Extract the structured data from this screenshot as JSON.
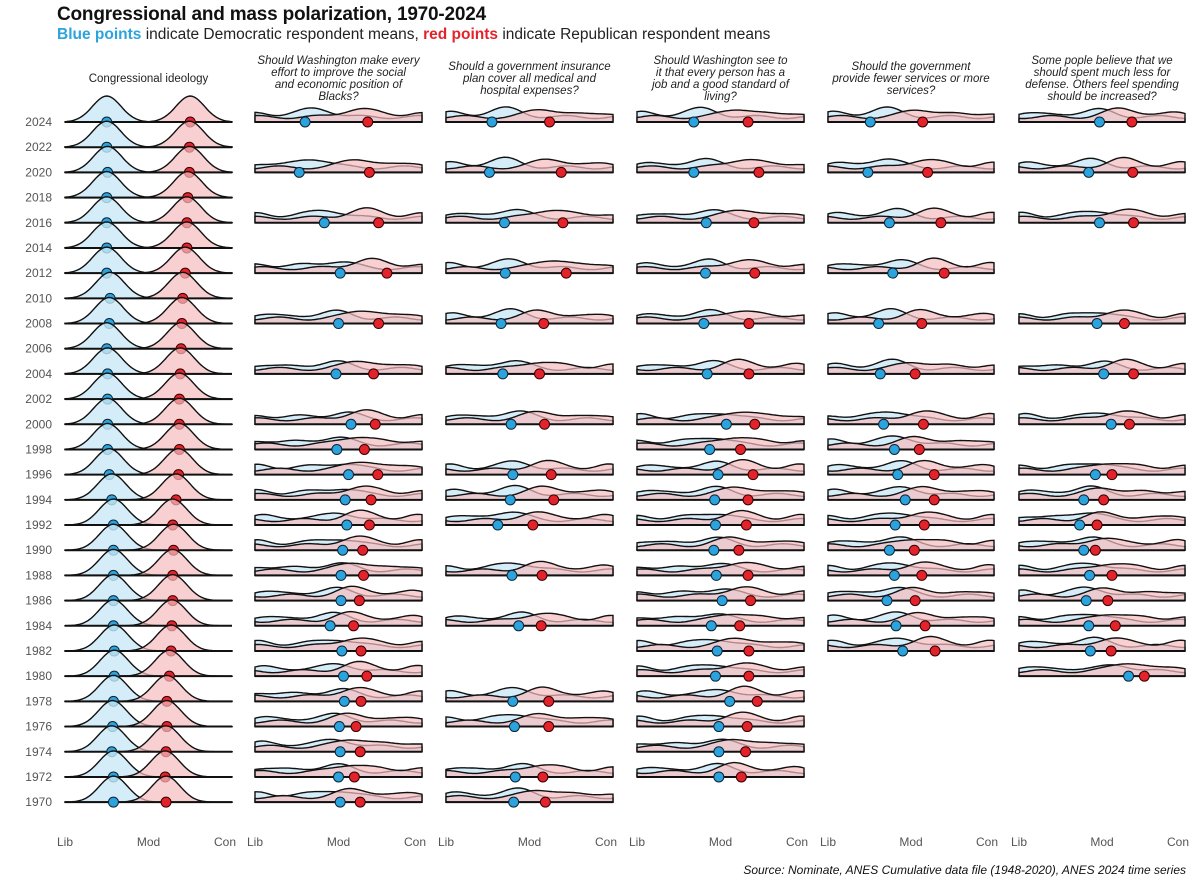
{
  "title": "Congressional and mass polarization, 1970-2024",
  "subtitle": {
    "blue_label": "Blue points",
    "blue_text": " indicate Democratic respondent means, ",
    "red_label": "red points",
    "red_text": " indicate Republican respondent means"
  },
  "source": "Source: Nominate, ANES Cumulative data file (1948-2020), ANES 2024 time series",
  "colors": {
    "dem_point": "#2ba3dc",
    "rep_point": "#e3232b",
    "dem_fill": "#c9e8f6",
    "rep_fill": "#f6bcbf",
    "outline": "#111111"
  },
  "chart_data": {
    "type": "ridgeline",
    "xlim": [
      -1,
      1
    ],
    "x_ticks": [
      {
        "value": -1,
        "label": "Lib"
      },
      {
        "value": 0,
        "label": "Mod"
      },
      {
        "value": 1,
        "label": "Con"
      }
    ],
    "years": [
      "2024",
      "2022",
      "2020",
      "2018",
      "2016",
      "2014",
      "2012",
      "2010",
      "2008",
      "2006",
      "2004",
      "2002",
      "2000",
      "1998",
      "1996",
      "1994",
      "1992",
      "1990",
      "1988",
      "1986",
      "1984",
      "1982",
      "1980",
      "1978",
      "1976",
      "1974",
      "1972",
      "1970"
    ],
    "panels": [
      {
        "title_lines": [
          "Congressional ideology"
        ],
        "italic": false,
        "kind": "congress",
        "points": [
          {
            "year": 2024,
            "dem": -0.5,
            "rep": 0.5
          },
          {
            "year": 2022,
            "dem": -0.5,
            "rep": 0.49
          },
          {
            "year": 2020,
            "dem": -0.49,
            "rep": 0.49
          },
          {
            "year": 2018,
            "dem": -0.5,
            "rep": 0.47
          },
          {
            "year": 2016,
            "dem": -0.5,
            "rep": 0.46
          },
          {
            "year": 2014,
            "dem": -0.5,
            "rep": 0.46
          },
          {
            "year": 2012,
            "dem": -0.5,
            "rep": 0.44
          },
          {
            "year": 2010,
            "dem": -0.46,
            "rep": 0.41
          },
          {
            "year": 2008,
            "dem": -0.47,
            "rep": 0.4
          },
          {
            "year": 2006,
            "dem": -0.5,
            "rep": 0.39
          },
          {
            "year": 2004,
            "dem": -0.49,
            "rep": 0.38
          },
          {
            "year": 2002,
            "dem": -0.49,
            "rep": 0.37
          },
          {
            "year": 2000,
            "dem": -0.49,
            "rep": 0.37
          },
          {
            "year": 1998,
            "dem": -0.49,
            "rep": 0.37
          },
          {
            "year": 1996,
            "dem": -0.47,
            "rep": 0.36
          },
          {
            "year": 1994,
            "dem": -0.44,
            "rep": 0.33
          },
          {
            "year": 1992,
            "dem": -0.42,
            "rep": 0.29
          },
          {
            "year": 1990,
            "dem": -0.42,
            "rep": 0.3
          },
          {
            "year": 1988,
            "dem": -0.42,
            "rep": 0.29
          },
          {
            "year": 1986,
            "dem": -0.42,
            "rep": 0.29
          },
          {
            "year": 1984,
            "dem": -0.42,
            "rep": 0.28
          },
          {
            "year": 1982,
            "dem": -0.41,
            "rep": 0.27
          },
          {
            "year": 1980,
            "dem": -0.41,
            "rep": 0.25
          },
          {
            "year": 1978,
            "dem": -0.42,
            "rep": 0.22
          },
          {
            "year": 1976,
            "dem": -0.43,
            "rep": 0.22
          },
          {
            "year": 1974,
            "dem": -0.44,
            "rep": 0.21
          },
          {
            "year": 1972,
            "dem": -0.42,
            "rep": 0.2
          },
          {
            "year": 1970,
            "dem": -0.42,
            "rep": 0.21
          }
        ]
      },
      {
        "title_lines": [
          "Should Washington make every",
          "effort to improve the social",
          "and economic position of",
          "Blacks?"
        ],
        "italic": true,
        "kind": "survey",
        "points": [
          {
            "year": 2024,
            "dem": -0.4,
            "rep": 0.35
          },
          {
            "year": 2020,
            "dem": -0.47,
            "rep": 0.37
          },
          {
            "year": 2016,
            "dem": -0.17,
            "rep": 0.48
          },
          {
            "year": 2012,
            "dem": 0.02,
            "rep": 0.58
          },
          {
            "year": 2008,
            "dem": 0.0,
            "rep": 0.48
          },
          {
            "year": 2004,
            "dem": -0.03,
            "rep": 0.42
          },
          {
            "year": 2000,
            "dem": 0.15,
            "rep": 0.44
          },
          {
            "year": 1998,
            "dem": -0.02,
            "rep": 0.31
          },
          {
            "year": 1996,
            "dem": 0.12,
            "rep": 0.47
          },
          {
            "year": 1994,
            "dem": 0.08,
            "rep": 0.39
          },
          {
            "year": 1992,
            "dem": 0.1,
            "rep": 0.37
          },
          {
            "year": 1990,
            "dem": 0.05,
            "rep": 0.29
          },
          {
            "year": 1988,
            "dem": 0.03,
            "rep": 0.3
          },
          {
            "year": 1986,
            "dem": 0.03,
            "rep": 0.25
          },
          {
            "year": 1984,
            "dem": -0.1,
            "rep": 0.18
          },
          {
            "year": 1982,
            "dem": 0.04,
            "rep": 0.27
          },
          {
            "year": 1980,
            "dem": 0.06,
            "rep": 0.34
          },
          {
            "year": 1978,
            "dem": 0.07,
            "rep": 0.27
          },
          {
            "year": 1976,
            "dem": 0.01,
            "rep": 0.21
          },
          {
            "year": 1974,
            "dem": 0.02,
            "rep": 0.26
          },
          {
            "year": 1972,
            "dem": 0.0,
            "rep": 0.19
          },
          {
            "year": 1970,
            "dem": 0.02,
            "rep": 0.26
          }
        ]
      },
      {
        "title_lines": [
          "Should a government insurance",
          "plan cover all medical and",
          "hospital expenses?"
        ],
        "italic": true,
        "kind": "survey",
        "points": [
          {
            "year": 2024,
            "dem": -0.45,
            "rep": 0.24
          },
          {
            "year": 2020,
            "dem": -0.48,
            "rep": 0.38
          },
          {
            "year": 2016,
            "dem": -0.3,
            "rep": 0.4
          },
          {
            "year": 2012,
            "dem": -0.29,
            "rep": 0.44
          },
          {
            "year": 2008,
            "dem": -0.34,
            "rep": 0.17
          },
          {
            "year": 2004,
            "dem": -0.32,
            "rep": 0.12
          },
          {
            "year": 2000,
            "dem": -0.22,
            "rep": 0.18
          },
          {
            "year": 1996,
            "dem": -0.2,
            "rep": 0.26
          },
          {
            "year": 1994,
            "dem": -0.23,
            "rep": 0.29
          },
          {
            "year": 1992,
            "dem": -0.38,
            "rep": 0.04
          },
          {
            "year": 1988,
            "dem": -0.21,
            "rep": 0.15
          },
          {
            "year": 1984,
            "dem": -0.13,
            "rep": 0.14
          },
          {
            "year": 1978,
            "dem": -0.2,
            "rep": 0.23
          },
          {
            "year": 1976,
            "dem": -0.18,
            "rep": 0.23
          },
          {
            "year": 1972,
            "dem": -0.17,
            "rep": 0.16
          },
          {
            "year": 1970,
            "dem": -0.19,
            "rep": 0.19
          }
        ]
      },
      {
        "title_lines": [
          "Should Washington see to",
          "it that every person has a",
          "job and a good standard of",
          "living?"
        ],
        "italic": true,
        "kind": "survey",
        "points": [
          {
            "year": 2024,
            "dem": -0.32,
            "rep": 0.33
          },
          {
            "year": 2020,
            "dem": -0.32,
            "rep": 0.46
          },
          {
            "year": 2016,
            "dem": -0.17,
            "rep": 0.4
          },
          {
            "year": 2012,
            "dem": -0.18,
            "rep": 0.41
          },
          {
            "year": 2008,
            "dem": -0.2,
            "rep": 0.34
          },
          {
            "year": 2004,
            "dem": -0.16,
            "rep": 0.34
          },
          {
            "year": 2000,
            "dem": 0.07,
            "rep": 0.41
          },
          {
            "year": 1998,
            "dem": -0.13,
            "rep": 0.24
          },
          {
            "year": 1996,
            "dem": -0.03,
            "rep": 0.39
          },
          {
            "year": 1994,
            "dem": -0.07,
            "rep": 0.33
          },
          {
            "year": 1992,
            "dem": -0.06,
            "rep": 0.31
          },
          {
            "year": 1990,
            "dem": -0.08,
            "rep": 0.22
          },
          {
            "year": 1988,
            "dem": -0.05,
            "rep": 0.33
          },
          {
            "year": 1986,
            "dem": 0.02,
            "rep": 0.36
          },
          {
            "year": 1984,
            "dem": -0.11,
            "rep": 0.23
          },
          {
            "year": 1982,
            "dem": -0.04,
            "rep": 0.34
          },
          {
            "year": 1980,
            "dem": -0.06,
            "rep": 0.34
          },
          {
            "year": 1978,
            "dem": 0.11,
            "rep": 0.44
          },
          {
            "year": 1976,
            "dem": -0.02,
            "rep": 0.32
          },
          {
            "year": 1974,
            "dem": -0.02,
            "rep": 0.3
          },
          {
            "year": 1972,
            "dem": -0.02,
            "rep": 0.25
          }
        ]
      },
      {
        "title_lines": [
          "Should the government",
          "provide fewer services or more",
          "services?"
        ],
        "italic": true,
        "kind": "survey",
        "points": [
          {
            "year": 2024,
            "dem": -0.49,
            "rep": 0.14
          },
          {
            "year": 2020,
            "dem": -0.52,
            "rep": 0.2
          },
          {
            "year": 2016,
            "dem": -0.26,
            "rep": 0.36
          },
          {
            "year": 2012,
            "dem": -0.22,
            "rep": 0.4
          },
          {
            "year": 2008,
            "dem": -0.39,
            "rep": 0.13
          },
          {
            "year": 2004,
            "dem": -0.37,
            "rep": 0.05
          },
          {
            "year": 2000,
            "dem": -0.33,
            "rep": 0.15
          },
          {
            "year": 1998,
            "dem": -0.2,
            "rep": 0.1
          },
          {
            "year": 1996,
            "dem": -0.16,
            "rep": 0.28
          },
          {
            "year": 1994,
            "dem": -0.07,
            "rep": 0.28
          },
          {
            "year": 1992,
            "dem": -0.19,
            "rep": 0.16
          },
          {
            "year": 1990,
            "dem": -0.26,
            "rep": 0.04
          },
          {
            "year": 1988,
            "dem": -0.2,
            "rep": 0.13
          },
          {
            "year": 1986,
            "dem": -0.29,
            "rep": 0.05
          },
          {
            "year": 1984,
            "dem": -0.18,
            "rep": 0.17
          },
          {
            "year": 1982,
            "dem": -0.1,
            "rep": 0.29
          }
        ]
      },
      {
        "title_lines": [
          "Some pople believe that we",
          "should spent much less for",
          "defense. Others feel spending",
          "should be increased?"
        ],
        "italic": true,
        "kind": "survey",
        "points": [
          {
            "year": 2024,
            "dem": -0.03,
            "rep": 0.36
          },
          {
            "year": 2020,
            "dem": -0.16,
            "rep": 0.37
          },
          {
            "year": 2016,
            "dem": -0.03,
            "rep": 0.38
          },
          {
            "year": 2008,
            "dem": -0.06,
            "rep": 0.27
          },
          {
            "year": 2004,
            "dem": 0.02,
            "rep": 0.38
          },
          {
            "year": 2000,
            "dem": 0.11,
            "rep": 0.33
          },
          {
            "year": 1996,
            "dem": -0.08,
            "rep": 0.12
          },
          {
            "year": 1994,
            "dem": -0.22,
            "rep": 0.02
          },
          {
            "year": 1992,
            "dem": -0.27,
            "rep": -0.06
          },
          {
            "year": 1990,
            "dem": -0.22,
            "rep": -0.08
          },
          {
            "year": 1988,
            "dem": -0.15,
            "rep": 0.12
          },
          {
            "year": 1986,
            "dem": -0.19,
            "rep": 0.07
          },
          {
            "year": 1984,
            "dem": -0.16,
            "rep": 0.16
          },
          {
            "year": 1982,
            "dem": -0.14,
            "rep": 0.11
          },
          {
            "year": 1980,
            "dem": 0.32,
            "rep": 0.51
          }
        ]
      }
    ]
  }
}
